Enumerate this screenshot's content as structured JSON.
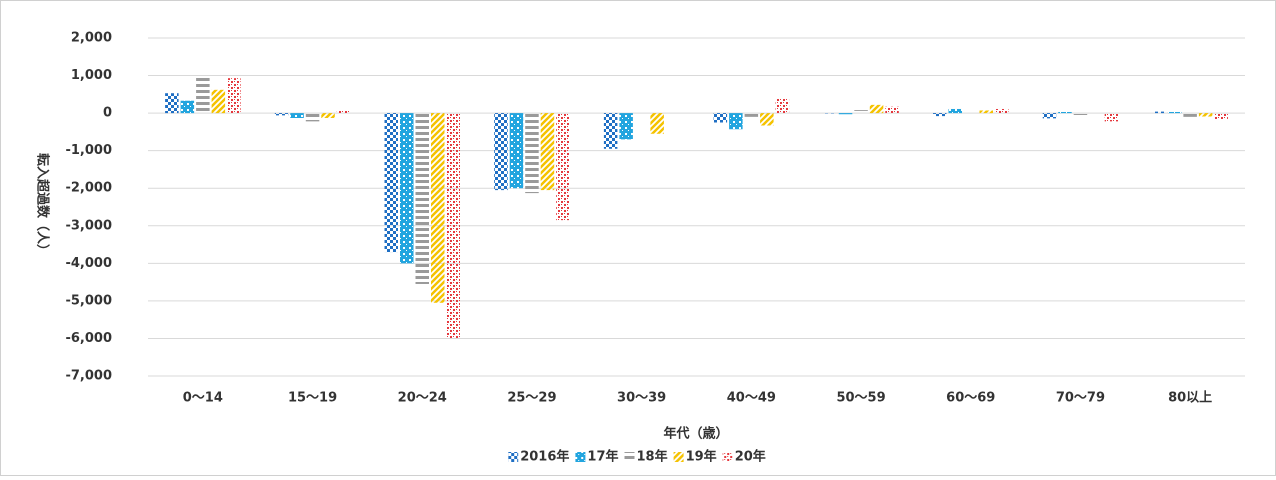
{
  "chart_data": {
    "type": "bar",
    "y_label": "転入超過数（人）",
    "x_label": "年代（歳）",
    "categories": [
      "0～14",
      "15～19",
      "20～24",
      "25～29",
      "30～39",
      "40～49",
      "50～59",
      "60～69",
      "70～79",
      "80以上"
    ],
    "series": [
      {
        "name": "2016年",
        "color": "#1f6fc4",
        "values": [
          530,
          -60,
          -3700,
          -2050,
          -950,
          -250,
          -10,
          -80,
          -140,
          40
        ]
      },
      {
        "name": "17年",
        "color": "#22a5df",
        "values": [
          330,
          -130,
          -4000,
          -2000,
          -700,
          -430,
          -30,
          110,
          30,
          30
        ]
      },
      {
        "name": "18年",
        "color": "#9a9a9a",
        "values": [
          1000,
          -220,
          -4550,
          -2130,
          0,
          -100,
          80,
          0,
          -50,
          -100
        ]
      },
      {
        "name": "19年",
        "color": "#f5c200",
        "values": [
          620,
          -130,
          -5050,
          -2050,
          -550,
          -330,
          220,
          70,
          0,
          -90
        ]
      },
      {
        "name": "20年",
        "color": "#e5383d",
        "values": [
          930,
          70,
          -6000,
          -2850,
          0,
          400,
          170,
          110,
          -220,
          -180
        ]
      }
    ],
    "ylim": [
      -7000,
      2000
    ],
    "yticks": [
      {
        "value": 2000,
        "label": "2,000"
      },
      {
        "value": 1000,
        "label": "1,000"
      },
      0,
      {
        "value": -1000,
        "label": "-1,000"
      },
      {
        "value": -2000,
        "label": "-2,000"
      },
      {
        "value": -3000,
        "label": "-3,000"
      },
      {
        "value": -4000,
        "label": "-4,000"
      },
      {
        "value": -5000,
        "label": "-5,000"
      },
      {
        "value": -6000,
        "label": "-6,000"
      },
      {
        "value": -7000,
        "label": "-7,000"
      }
    ],
    "grid": true
  }
}
